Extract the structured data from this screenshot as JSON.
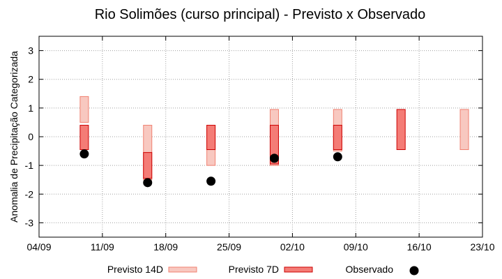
{
  "chart_data": {
    "type": "range",
    "title": "Rio Solimões (curso principal) - Previsto x Observado",
    "xlabel": "",
    "ylabel": "Anomalia de Precipitação Categorizada",
    "x_ticks": [
      "04/09",
      "11/09",
      "18/09",
      "25/09",
      "02/10",
      "09/10",
      "16/10",
      "23/10"
    ],
    "ylim": [
      -3.5,
      3.5
    ],
    "y_ticks": [
      3,
      2,
      1,
      0,
      -1,
      -2,
      -3
    ],
    "grid": true,
    "series": [
      {
        "name": "Previsto 14D",
        "kind": "range",
        "color": "#f8c8c0",
        "stroke": "#f08070",
        "points": [
          {
            "x": "09/09",
            "low": 0.5,
            "high": 1.4
          },
          {
            "x": "16/09",
            "low": -1.5,
            "high": 0.4
          },
          {
            "x": "23/09",
            "low": -1.0,
            "high": 0.4
          },
          {
            "x": "30/09",
            "low": -1.0,
            "high": 0.95
          },
          {
            "x": "07/10",
            "low": -0.5,
            "high": 0.95
          },
          {
            "x": "21/10",
            "low": -0.45,
            "high": 0.95
          }
        ]
      },
      {
        "name": "Previsto 7D",
        "kind": "range",
        "color": "#f47c76",
        "stroke": "#cc0000",
        "points": [
          {
            "x": "09/09",
            "low": -0.45,
            "high": 0.4
          },
          {
            "x": "16/09",
            "low": -1.45,
            "high": -0.55
          },
          {
            "x": "23/09",
            "low": -0.45,
            "high": 0.4
          },
          {
            "x": "30/09",
            "low": -0.95,
            "high": 0.4
          },
          {
            "x": "07/10",
            "low": -0.45,
            "high": 0.4
          },
          {
            "x": "14/10",
            "low": -0.45,
            "high": 0.95
          }
        ]
      },
      {
        "name": "Observado",
        "kind": "points",
        "color": "#000000",
        "points": [
          {
            "x": "09/09",
            "y": -0.6
          },
          {
            "x": "16/09",
            "y": -1.6
          },
          {
            "x": "23/09",
            "y": -1.55
          },
          {
            "x": "30/09",
            "y": -0.75
          },
          {
            "x": "07/10",
            "y": -0.7
          }
        ]
      }
    ],
    "legend": {
      "position": "bottom",
      "items": [
        "Previsto 14D",
        "Previsto 7D",
        "Observado"
      ]
    }
  }
}
